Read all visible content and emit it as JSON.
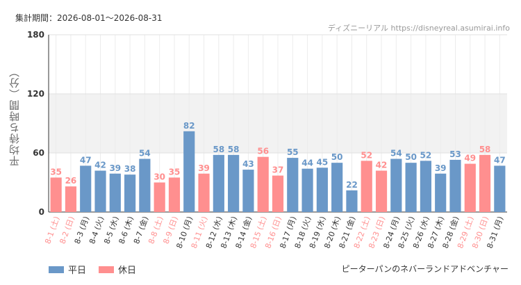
{
  "header": {
    "period_label": "集計期間：2026-08-01～2026-08-31",
    "source_label": "ディズニーリアル https://disneyreal.asumirai.info"
  },
  "footer": {
    "attraction_name": "ピーターパンのネバーランドアドベンチャー"
  },
  "colors": {
    "weekday": "#6a98c8",
    "holiday": "#ff8f8f",
    "band": "#f2f2f2",
    "grid": "#e0e0e0",
    "axis": "#333333"
  },
  "chart_data": {
    "type": "bar",
    "ylabel": "平均待ち時間（分）",
    "ylim": [
      0,
      180
    ],
    "yticks": [
      0,
      60,
      120,
      180
    ],
    "categories": [
      "8-1 (土)",
      "8-2 (日)",
      "8-3 (月)",
      "8-4 (火)",
      "8-5 (水)",
      "8-6 (木)",
      "8-7 (金)",
      "8-8 (土)",
      "8-9 (日)",
      "8-10 (月)",
      "8-11 (火)",
      "8-12 (水)",
      "8-13 (木)",
      "8-14 (金)",
      "8-15 (土)",
      "8-16 (日)",
      "8-17 (月)",
      "8-18 (火)",
      "8-19 (水)",
      "8-20 (木)",
      "8-21 (金)",
      "8-22 (土)",
      "8-23 (日)",
      "8-24 (月)",
      "8-25 (火)",
      "8-26 (水)",
      "8-27 (木)",
      "8-28 (金)",
      "8-29 (土)",
      "8-30 (日)",
      "8-31 (月)"
    ],
    "values": [
      35,
      26,
      47,
      42,
      39,
      38,
      54,
      30,
      35,
      82,
      39,
      58,
      58,
      43,
      56,
      37,
      55,
      44,
      45,
      50,
      22,
      52,
      42,
      54,
      50,
      52,
      39,
      53,
      49,
      58,
      47
    ],
    "day_type": [
      "holiday",
      "holiday",
      "weekday",
      "weekday",
      "weekday",
      "weekday",
      "weekday",
      "holiday",
      "holiday",
      "weekday",
      "holiday",
      "weekday",
      "weekday",
      "weekday",
      "holiday",
      "holiday",
      "weekday",
      "weekday",
      "weekday",
      "weekday",
      "weekday",
      "holiday",
      "holiday",
      "weekday",
      "weekday",
      "weekday",
      "weekday",
      "weekday",
      "holiday",
      "holiday",
      "weekday"
    ],
    "legend": [
      {
        "name": "平日",
        "type": "weekday"
      },
      {
        "name": "休日",
        "type": "holiday"
      }
    ],
    "legend_position": "bottom-left",
    "grid": true
  }
}
